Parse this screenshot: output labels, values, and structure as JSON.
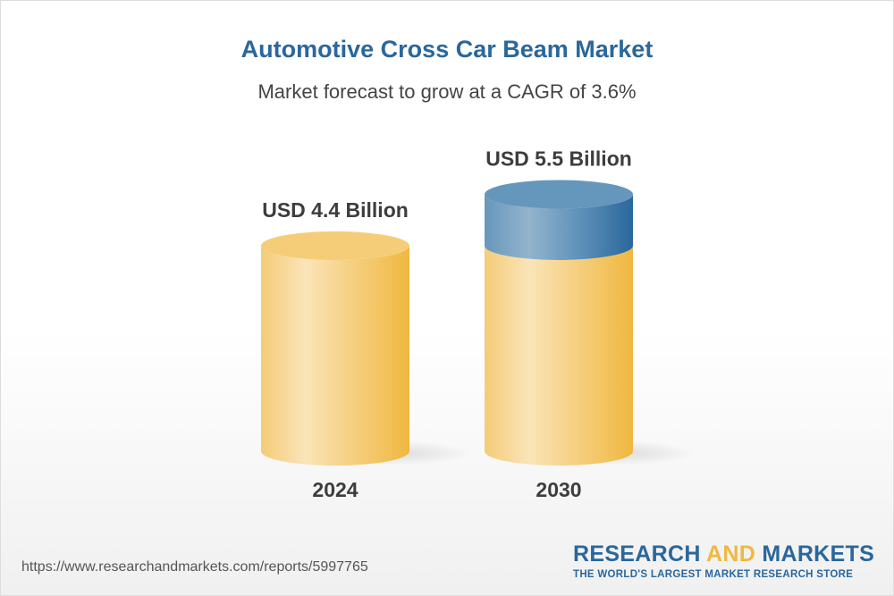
{
  "header": {
    "title": "Automotive Cross Car Beam Market",
    "subtitle": "Market forecast to grow at a CAGR of 3.6%"
  },
  "chart_data": {
    "type": "bar",
    "style": "3d-cylinder",
    "categories": [
      "2024",
      "2030"
    ],
    "values": [
      4.4,
      5.5
    ],
    "data_labels": [
      "USD 4.4 Billion",
      "USD 5.5 Billion"
    ],
    "unit": "USD Billion",
    "title": "Automotive Cross Car Beam Market",
    "subtitle": "Market forecast to grow at a CAGR of 3.6%",
    "colors": {
      "base": "#f2bb45",
      "growth": "#2a679c"
    },
    "grid": false
  },
  "footer": {
    "url": "https://www.researchandmarkets.com/reports/5997765",
    "logo": {
      "part1": "RESEARCH ",
      "part2": "AND",
      "part3": " MARKETS",
      "tagline": "THE WORLD'S LARGEST MARKET RESEARCH STORE"
    }
  }
}
